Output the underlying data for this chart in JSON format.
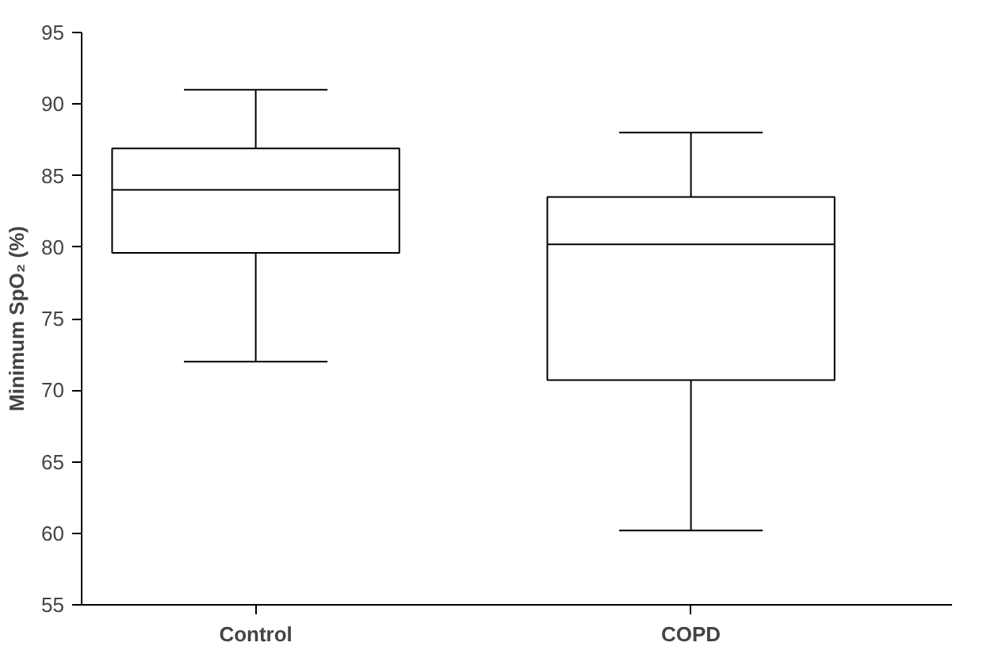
{
  "chart_data": {
    "type": "box",
    "ylabel": "Minimum SpO₂ (%)",
    "categories": [
      "Control",
      "COPD"
    ],
    "boxes": [
      {
        "low": 72,
        "q1": 79.6,
        "median": 84,
        "q3": 86.9,
        "high": 91
      },
      {
        "low": 60.2,
        "q1": 70.7,
        "median": 80.2,
        "q3": 83.5,
        "high": 88
      }
    ],
    "ylim": [
      55,
      95
    ],
    "yticks": [
      55,
      60,
      65,
      70,
      75,
      80,
      85,
      90,
      95
    ],
    "grid": false
  }
}
